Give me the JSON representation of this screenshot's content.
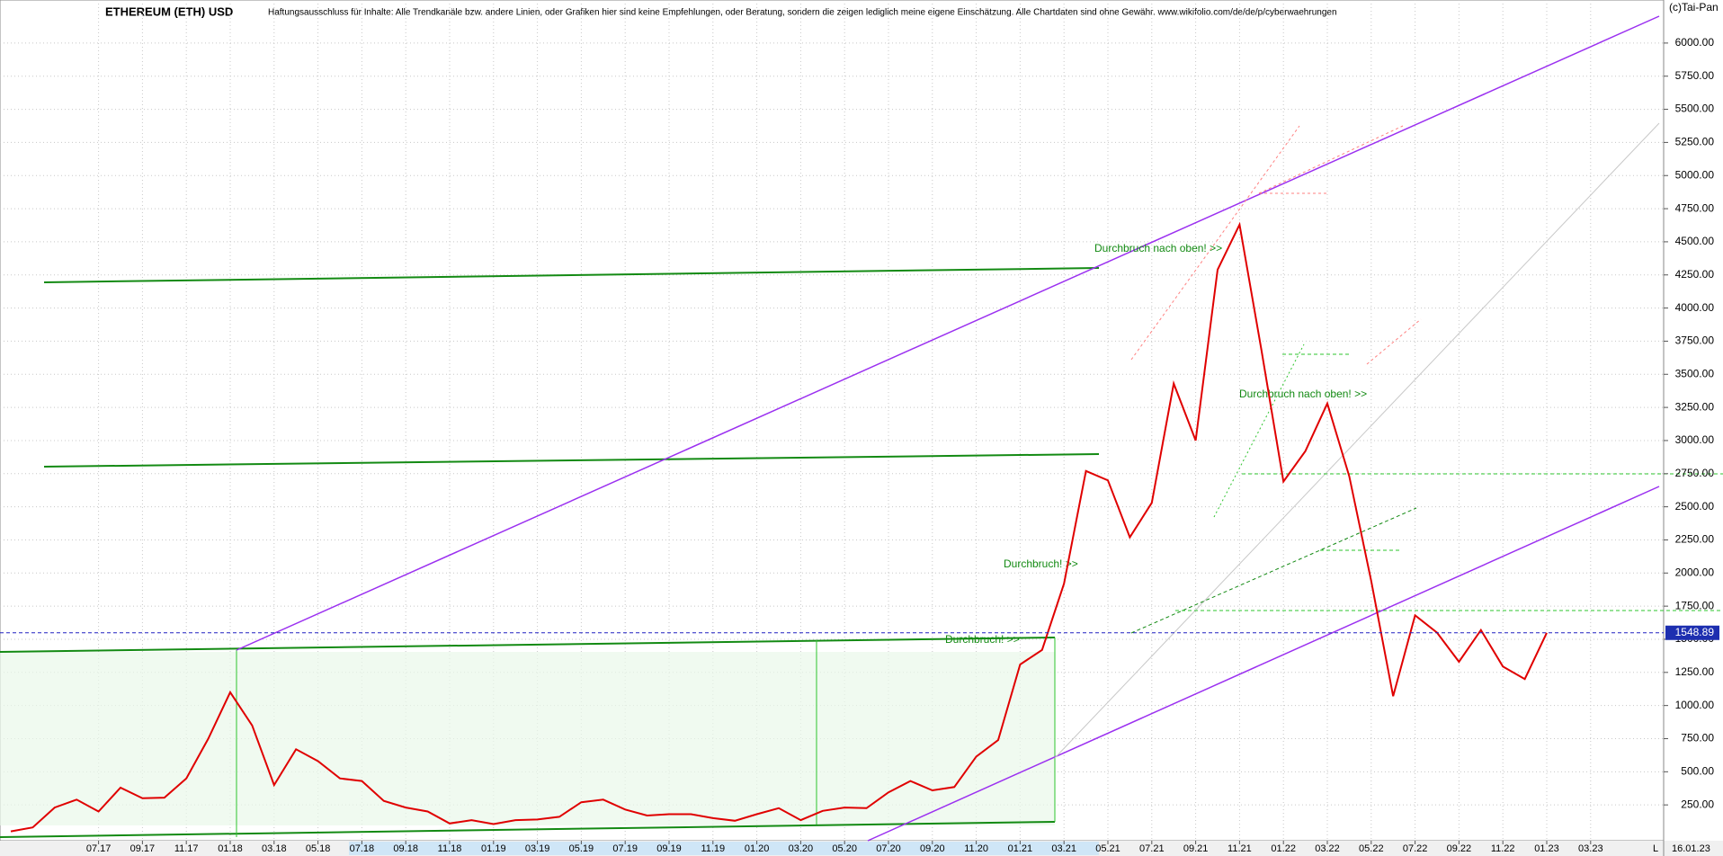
{
  "chart_data": {
    "type": "line",
    "title": "ETHEREUM (ETH) USD",
    "subtitle": "Haftungsausschluss für Inhalte: Alle Trendkanäle bzw. andere Linien, oder Grafiken hier sind keine Empfehlungen, oder Beratung, sondern die zeigen lediglich meine eigene Einschätzung. Alle Chartdaten sind ohne Gewähr.  www.wikifolio.com/de/de/p/cyberwaehrungen",
    "source": "(c)Tai-Pan",
    "date_label": "16.01.23",
    "corner_label": "L",
    "annotations": [
      "Durchbruch nach oben! >>",
      "Durchbruch nach oben! >>",
      "Durchbruch! >>",
      "Durchbruch! >>"
    ],
    "current_price": 1548.89,
    "color": "#e00000",
    "grid": true,
    "categories": [
      null,
      null,
      null,
      null,
      "07.17",
      null,
      "09.17",
      null,
      "11.17",
      null,
      "01.18",
      null,
      "03.18",
      null,
      "05.18",
      null,
      "07.18",
      null,
      "09.18",
      null,
      "11.18",
      null,
      "01.19",
      null,
      "03.19",
      null,
      "05.19",
      null,
      "07.19",
      null,
      "09.19",
      null,
      "11.19",
      null,
      "01.20",
      null,
      "03.20",
      null,
      "05.20",
      null,
      "07.20",
      null,
      "09.20",
      null,
      "11.20",
      null,
      "01.21",
      null,
      "03.21",
      null,
      "05.21",
      null,
      "07.21",
      null,
      "09.21",
      null,
      "11.21",
      null,
      "01.22",
      null,
      "03.22",
      null,
      "05.22",
      null,
      "07.22",
      null,
      "09.22",
      null,
      "11.22",
      null,
      "01.23",
      null,
      "03.23",
      null
    ],
    "values": [
      50,
      80,
      230,
      290,
      200,
      380,
      300,
      305,
      450,
      750,
      1100,
      850,
      400,
      670,
      580,
      450,
      430,
      280,
      230,
      200,
      110,
      135,
      105,
      135,
      140,
      160,
      270,
      290,
      215,
      170,
      180,
      180,
      150,
      130,
      180,
      225,
      135,
      205,
      230,
      225,
      345,
      430,
      360,
      385,
      615,
      740,
      1310,
      1420,
      1920,
      2770,
      2700,
      2270,
      2530,
      3430,
      3000,
      4290,
      4630,
      3680,
      2690,
      2920,
      3280,
      2730,
      1940,
      1070,
      1680,
      1550,
      1330,
      1570,
      1295,
      1200,
      1548.89,
      null,
      null,
      null
    ],
    "ylim": [
      0,
      6325
    ],
    "yticks": [
      {
        "value": 250,
        "label": "250.00"
      },
      {
        "value": 500,
        "label": "500.00"
      },
      {
        "value": 750,
        "label": "750.00"
      },
      {
        "value": 1000,
        "label": "1000.00"
      },
      {
        "value": 1250,
        "label": "1250.00"
      },
      {
        "value": 1500,
        "label": "1500.00"
      },
      {
        "value": 1750,
        "label": "1750.00"
      },
      {
        "value": 2000,
        "label": "2000.00"
      },
      {
        "value": 2250,
        "label": "2250.00"
      },
      {
        "value": 2500,
        "label": "2500.00"
      },
      {
        "value": 2750,
        "label": "2750.00"
      },
      {
        "value": 3000,
        "label": "3000.00"
      },
      {
        "value": 3250,
        "label": "3250.00"
      },
      {
        "value": 3500,
        "label": "3500.00"
      },
      {
        "value": 3750,
        "label": "3750.00"
      },
      {
        "value": 4000,
        "label": "4000.00"
      },
      {
        "value": 4250,
        "label": "4250.00"
      },
      {
        "value": 4500,
        "label": "4500.00"
      },
      {
        "value": 4750,
        "label": "4750.00"
      },
      {
        "value": 5000,
        "label": "5000.00"
      },
      {
        "value": 5250,
        "label": "5250.00"
      },
      {
        "value": 5500,
        "label": "5500.00"
      },
      {
        "value": 5750,
        "label": "5750.00"
      },
      {
        "value": 6000,
        "label": "6000.00"
      }
    ]
  }
}
